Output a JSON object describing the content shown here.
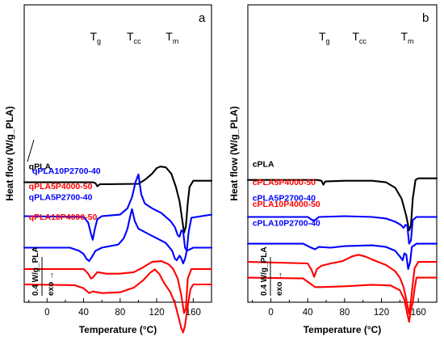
{
  "chart_data": [
    {
      "panel": "a",
      "type": "line",
      "xlabel": "Temperature (°C)",
      "ylabel": "Heat flow (W/g_PLA)",
      "xlim": [
        -25,
        180
      ],
      "xticks": [
        0,
        40,
        80,
        120,
        160
      ],
      "grid": false,
      "scale_bar_label": "0.4 W/g_PLA",
      "exo_label": "exo →",
      "transitions": [
        {
          "main": "T",
          "sub": "g",
          "x": 53
        },
        {
          "main": "T",
          "sub": "cc",
          "x": 95
        },
        {
          "main": "T",
          "sub": "m",
          "x": 137
        }
      ],
      "series": [
        {
          "name": "qPLA",
          "color": "#000000",
          "label_x": -20,
          "offset": 7.2,
          "points": [
            [
              -25,
              0
            ],
            [
              50,
              0
            ],
            [
              53,
              -0.05
            ],
            [
              55,
              -0.25
            ],
            [
              58,
              -0.12
            ],
            [
              65,
              -0.12
            ],
            [
              100,
              -0.1
            ],
            [
              108,
              0.2
            ],
            [
              115,
              0.55
            ],
            [
              120,
              0.9
            ],
            [
              124,
              1.0
            ],
            [
              130,
              0.95
            ],
            [
              136,
              0.55
            ],
            [
              141,
              -0.3
            ],
            [
              145,
              -1.2
            ],
            [
              148,
              -2.4
            ],
            [
              150,
              -3.2
            ],
            [
              152,
              -2.8
            ],
            [
              154,
              -1.3
            ],
            [
              156,
              -0.3
            ],
            [
              160,
              0.1
            ],
            [
              180,
              0.1
            ]
          ]
        },
        {
          "name": "qPLA5P2700-40",
          "color": "#0000ff",
          "label_x": -20,
          "offset": 5.05,
          "points": [
            [
              -25,
              0
            ],
            [
              40,
              -0.05
            ],
            [
              45,
              -0.4
            ],
            [
              48,
              -1.1
            ],
            [
              50,
              -1.5
            ],
            [
              52,
              -0.9
            ],
            [
              55,
              -0.2
            ],
            [
              60,
              0
            ],
            [
              80,
              0.1
            ],
            [
              88,
              0.5
            ],
            [
              93,
              1.2
            ],
            [
              97,
              2.2
            ],
            [
              100,
              2.65
            ],
            [
              103,
              1.4
            ],
            [
              107,
              0.8
            ],
            [
              115,
              0.5
            ],
            [
              125,
              0.2
            ],
            [
              135,
              -0.3
            ],
            [
              140,
              -0.7
            ],
            [
              143,
              -1.2
            ],
            [
              145,
              -1.3
            ],
            [
              147,
              -0.9
            ],
            [
              149,
              -1.0
            ],
            [
              151,
              -2.0
            ],
            [
              153,
              -2.2
            ],
            [
              155,
              -1.0
            ],
            [
              158,
              -0.1
            ],
            [
              180,
              0.1
            ]
          ]
        },
        {
          "name": "qPLA10P2700-40",
          "color": "#0000ff",
          "label_x": -20,
          "offset": 3.05,
          "points": [
            [
              -25,
              0
            ],
            [
              25,
              0
            ],
            [
              35,
              -0.2
            ],
            [
              40,
              -0.4
            ],
            [
              43,
              -0.7
            ],
            [
              46,
              -0.85
            ],
            [
              49,
              -0.6
            ],
            [
              53,
              -0.2
            ],
            [
              60,
              0
            ],
            [
              78,
              0.2
            ],
            [
              84,
              0.6
            ],
            [
              88,
              1.2
            ],
            [
              91,
              2.0
            ],
            [
              93,
              2.45
            ],
            [
              96,
              1.7
            ],
            [
              100,
              1.2
            ],
            [
              110,
              0.9
            ],
            [
              120,
              0.6
            ],
            [
              130,
              0.3
            ],
            [
              137,
              -0.2
            ],
            [
              140,
              -0.7
            ],
            [
              142,
              -0.8
            ],
            [
              145,
              -0.5
            ],
            [
              147,
              -0.7
            ],
            [
              149,
              -1.0
            ],
            [
              151,
              -0.7
            ],
            [
              153,
              -0.2
            ],
            [
              160,
              0
            ],
            [
              180,
              0
            ]
          ]
        },
        {
          "name": "qPLA5P4000-50",
          "color": "#ff0000",
          "label_x": -20,
          "offset": 1.7,
          "points": [
            [
              -25,
              0
            ],
            [
              40,
              0
            ],
            [
              45,
              -0.3
            ],
            [
              48,
              -0.6
            ],
            [
              50,
              -0.55
            ],
            [
              55,
              -0.2
            ],
            [
              65,
              -0.3
            ],
            [
              80,
              -0.3
            ],
            [
              95,
              -0.2
            ],
            [
              105,
              0.1
            ],
            [
              115,
              0.45
            ],
            [
              125,
              0.5
            ],
            [
              133,
              0.3
            ],
            [
              138,
              0
            ],
            [
              143,
              -0.6
            ],
            [
              147,
              -1.7
            ],
            [
              150,
              -2.8
            ],
            [
              152,
              -2.5
            ],
            [
              154,
              -0.6
            ],
            [
              158,
              0
            ],
            [
              180,
              0
            ]
          ]
        },
        {
          "name": "qPLA10P4000-50",
          "color": "#ff0000",
          "label_x": -20,
          "offset": 0.72,
          "points": [
            [
              -25,
              0
            ],
            [
              30,
              -0.05
            ],
            [
              40,
              -0.25
            ],
            [
              46,
              -0.55
            ],
            [
              50,
              -0.45
            ],
            [
              60,
              -0.55
            ],
            [
              80,
              -0.5
            ],
            [
              95,
              -0.2
            ],
            [
              105,
              0.25
            ],
            [
              113,
              0.75
            ],
            [
              118,
              0.95
            ],
            [
              123,
              0.65
            ],
            [
              128,
              0.1
            ],
            [
              135,
              -0.5
            ],
            [
              140,
              -1.2
            ],
            [
              144,
              -2.1
            ],
            [
              147,
              -2.8
            ],
            [
              149,
              -3.05
            ],
            [
              151,
              -2.6
            ],
            [
              153,
              -1.8
            ],
            [
              155,
              -1.0
            ],
            [
              157,
              -0.3
            ],
            [
              160,
              0
            ],
            [
              180,
              0
            ]
          ]
        }
      ]
    },
    {
      "panel": "b",
      "type": "line",
      "xlabel": "Temperature (°C)",
      "ylabel": "Heat flow (W/g_PLA)",
      "xlim": [
        -25,
        180
      ],
      "xticks": [
        0,
        40,
        80,
        120,
        160
      ],
      "grid": false,
      "scale_bar_label": "0.4 W/g_PLA",
      "exo_label": "exo →",
      "transitions": [
        {
          "main": "T",
          "sub": "g",
          "x": 58
        },
        {
          "main": "T",
          "sub": "cc",
          "x": 96
        },
        {
          "main": "T",
          "sub": "m",
          "x": 148
        }
      ],
      "series": [
        {
          "name": "cPLA",
          "color": "#000000",
          "label_x": -20,
          "offset": 7.35,
          "points": [
            [
              -25,
              0
            ],
            [
              50,
              0
            ],
            [
              55,
              -0.05
            ],
            [
              57,
              -0.3
            ],
            [
              59,
              -0.1
            ],
            [
              80,
              -0.05
            ],
            [
              110,
              -0.05
            ],
            [
              125,
              -0.15
            ],
            [
              135,
              -0.5
            ],
            [
              142,
              -1.2
            ],
            [
              147,
              -2.3
            ],
            [
              150,
              -3.2
            ],
            [
              152,
              -2.9
            ],
            [
              154,
              -1.2
            ],
            [
              157,
              0
            ],
            [
              160,
              0.1
            ],
            [
              180,
              0.1
            ]
          ]
        },
        {
          "name": "cPLA5P2700-40",
          "color": "#0000ff",
          "label_x": -20,
          "offset": 5.0,
          "points": [
            [
              -25,
              0
            ],
            [
              40,
              0
            ],
            [
              45,
              -0.2
            ],
            [
              48,
              -0.2
            ],
            [
              52,
              0
            ],
            [
              80,
              0.05
            ],
            [
              110,
              0
            ],
            [
              125,
              -0.1
            ],
            [
              135,
              -0.3
            ],
            [
              141,
              -0.5
            ],
            [
              144,
              -0.7
            ],
            [
              146,
              -0.5
            ],
            [
              148,
              -0.55
            ],
            [
              150,
              -1.7
            ],
            [
              152,
              -1.5
            ],
            [
              154,
              -0.2
            ],
            [
              158,
              0
            ],
            [
              180,
              0
            ]
          ]
        },
        {
          "name": "cPLA10P2700-40",
          "color": "#0000ff",
          "label_x": -20,
          "offset": 3.3,
          "points": [
            [
              -25,
              0
            ],
            [
              35,
              0
            ],
            [
              42,
              -0.2
            ],
            [
              48,
              -0.35
            ],
            [
              52,
              -0.2
            ],
            [
              65,
              -0.25
            ],
            [
              80,
              -0.15
            ],
            [
              110,
              -0.1
            ],
            [
              125,
              -0.2
            ],
            [
              135,
              -0.45
            ],
            [
              140,
              -0.8
            ],
            [
              143,
              -1.05
            ],
            [
              145,
              -0.6
            ],
            [
              147,
              -0.7
            ],
            [
              149,
              -1.6
            ],
            [
              151,
              -1.2
            ],
            [
              153,
              -0.2
            ],
            [
              158,
              0
            ],
            [
              180,
              0
            ]
          ]
        },
        {
          "name": "cPLA5P4000-50",
          "color": "#ff0000",
          "label_x": -20,
          "offset": 2.15,
          "points": [
            [
              -25,
              0
            ],
            [
              40,
              -0.1
            ],
            [
              44,
              -0.5
            ],
            [
              47,
              -0.95
            ],
            [
              50,
              -0.45
            ],
            [
              55,
              -0.25
            ],
            [
              65,
              -0.1
            ],
            [
              78,
              0.05
            ],
            [
              88,
              0.35
            ],
            [
              95,
              0.45
            ],
            [
              102,
              0.35
            ],
            [
              112,
              0.1
            ],
            [
              125,
              -0.2
            ],
            [
              135,
              -0.6
            ],
            [
              140,
              -1.0
            ],
            [
              144,
              -1.6
            ],
            [
              147,
              -2.4
            ],
            [
              150,
              -3.3
            ],
            [
              152,
              -2.5
            ],
            [
              154,
              -1.4
            ],
            [
              156,
              -0.4
            ],
            [
              160,
              0
            ],
            [
              180,
              0
            ]
          ]
        },
        {
          "name": "cPLA10P4000-50",
          "color": "#ff0000",
          "label_x": -20,
          "offset": 1.15,
          "points": [
            [
              -25,
              0
            ],
            [
              35,
              -0.05
            ],
            [
              42,
              -0.35
            ],
            [
              48,
              -0.6
            ],
            [
              55,
              -0.6
            ],
            [
              80,
              -0.55
            ],
            [
              110,
              -0.45
            ],
            [
              130,
              -0.5
            ],
            [
              140,
              -0.8
            ],
            [
              145,
              -1.4
            ],
            [
              148,
              -2.3
            ],
            [
              150,
              -2.8
            ],
            [
              152,
              -2.0
            ],
            [
              154,
              -1.6
            ],
            [
              156,
              -0.7
            ],
            [
              158,
              0
            ],
            [
              180,
              0
            ]
          ]
        }
      ]
    }
  ]
}
